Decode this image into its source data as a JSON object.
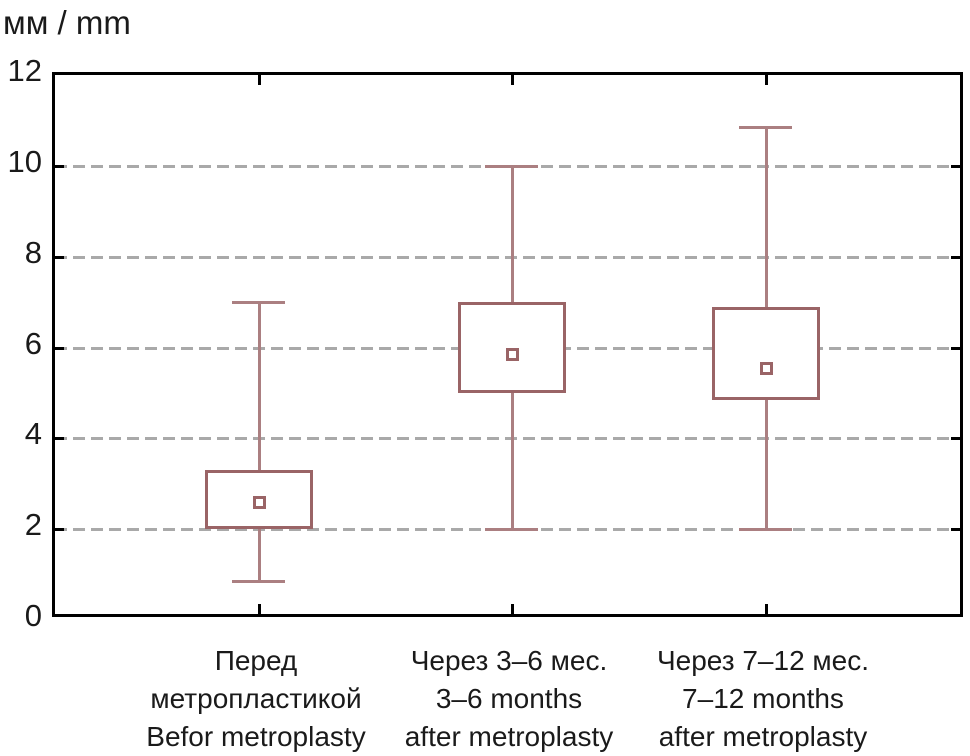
{
  "title": "мм / mm",
  "colors": {
    "axis": "#000000",
    "grid": "#a9a9a9",
    "box_stroke": "#9a6466",
    "whisker_stroke": "#ab7f81",
    "text": "#1a1a1a",
    "background": "#ffffff"
  },
  "chart_data": {
    "type": "box",
    "title": "мм / mm",
    "ylabel": "мм / mm",
    "xlabel": "",
    "ylim": [
      0,
      12
    ],
    "yticks": [
      0,
      2,
      4,
      6,
      8,
      10,
      12
    ],
    "gridlines": [
      2,
      4,
      6,
      8,
      10
    ],
    "grid_style": "horizontal dashed gray",
    "legend": "none",
    "marker": "open square at mean",
    "series": [
      {
        "label_lines": [
          "Перед",
          "метропластикой",
          "Befor metroplasty"
        ],
        "whisker_low": 0.85,
        "q1": 2.0,
        "mean": 2.6,
        "q3": 3.3,
        "whisker_high": 7.0
      },
      {
        "label_lines": [
          "Через 3–6 мес.",
          "3–6 months",
          "after metroplasty"
        ],
        "whisker_low": 2.0,
        "q1": 5.0,
        "mean": 5.85,
        "q3": 7.0,
        "whisker_high": 10.0
      },
      {
        "label_lines": [
          "Через 7–12 мес.",
          "7–12 months",
          "after metroplasty"
        ],
        "whisker_low": 2.0,
        "q1": 4.85,
        "mean": 5.55,
        "q3": 6.9,
        "whisker_high": 10.85
      }
    ]
  }
}
